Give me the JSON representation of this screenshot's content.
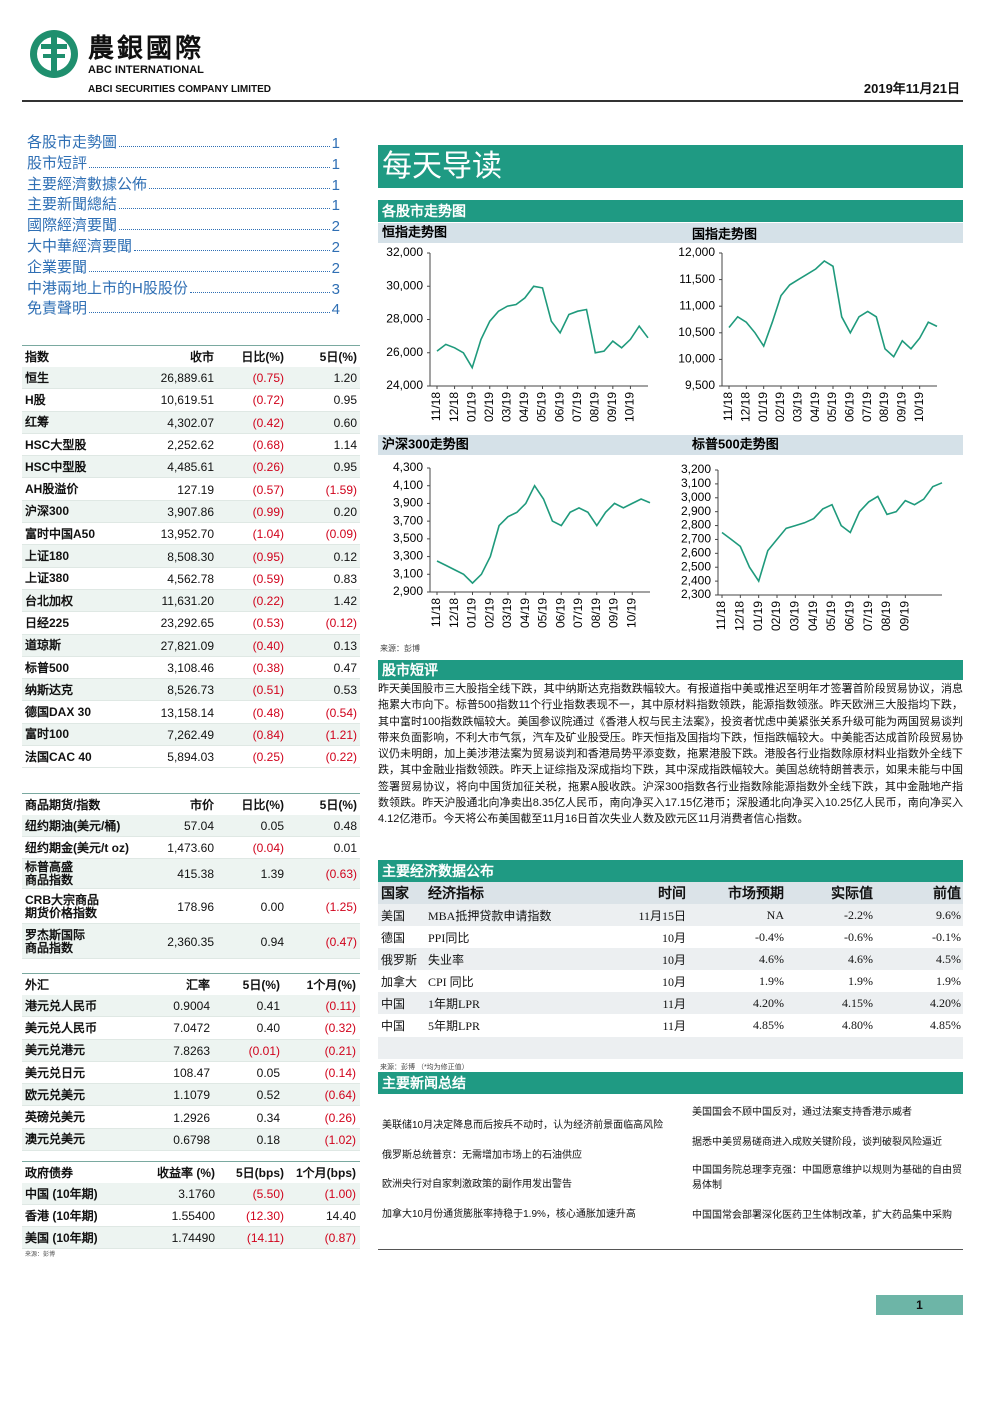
{
  "header": {
    "company_cn": "農銀國際",
    "company_en": "ABC INTERNATIONAL",
    "company_full": "ABCI SECURITIES COMPANY LIMITED",
    "date": "2019年11月21日"
  },
  "toc": [
    {
      "title": "各股市走勢圖",
      "page": 1
    },
    {
      "title": "股市短評",
      "page": 1
    },
    {
      "title": "主要經濟數據公佈",
      "page": 1
    },
    {
      "title": "主要新聞總結",
      "page": 1
    },
    {
      "title": "國際經濟要聞",
      "page": 2
    },
    {
      "title": "大中華經濟要聞",
      "page": 2
    },
    {
      "title": "企業要聞",
      "page": 2
    },
    {
      "title": "中港兩地上市的H股股份",
      "page": 3
    },
    {
      "title": "免責聲明",
      "page": 4
    }
  ],
  "indices": {
    "header": [
      "指数",
      "收市",
      "日比(%)",
      "5日(%)"
    ],
    "rows": [
      [
        "恒生",
        "26,889.61",
        "(0.75)",
        "1.20"
      ],
      [
        "H股",
        "10,619.51",
        "(0.72)",
        "0.95"
      ],
      [
        "红筹",
        "4,302.07",
        "(0.42)",
        "0.60"
      ],
      [
        "HSC大型股",
        "2,252.62",
        "(0.68)",
        "1.14"
      ],
      [
        "HSC中型股",
        "4,485.61",
        "(0.26)",
        "0.95"
      ],
      [
        "AH股溢价",
        "127.19",
        "(0.57)",
        "(1.59)"
      ],
      [
        "沪深300",
        "3,907.86",
        "(0.99)",
        "0.20"
      ],
      [
        "富时中国A50",
        "13,952.70",
        "(1.04)",
        "(0.09)"
      ],
      [
        "上证180",
        "8,508.30",
        "(0.95)",
        "0.12"
      ],
      [
        "上证380",
        "4,562.78",
        "(0.59)",
        "0.83"
      ],
      [
        "台北加权",
        "11,631.20",
        "(0.22)",
        "1.42"
      ],
      [
        "日经225",
        "23,292.65",
        "(0.53)",
        "(0.12)"
      ],
      [
        "道琼斯",
        "27,821.09",
        "(0.40)",
        "0.13"
      ],
      [
        "标普500",
        "3,108.46",
        "(0.38)",
        "0.47"
      ],
      [
        "纳斯达克",
        "8,526.73",
        "(0.51)",
        "0.53"
      ],
      [
        "德国DAX 30",
        "13,158.14",
        "(0.48)",
        "(0.54)"
      ],
      [
        "富时100",
        "7,262.49",
        "(0.84)",
        "(1.21)"
      ],
      [
        "法国CAC 40",
        "5,894.03",
        "(0.25)",
        "(0.22)"
      ]
    ]
  },
  "commodities": {
    "header": [
      "商品期货/指数",
      "市价",
      "日比(%)",
      "5日(%)"
    ],
    "rows": [
      [
        "纽约期油(美元/桶)",
        "57.04",
        "0.05",
        "0.48"
      ],
      [
        "纽约期金(美元/t oz)",
        "1,473.60",
        "(0.04)",
        "0.01"
      ],
      [
        "标普高盛\n商品指数",
        "415.38",
        "1.39",
        "(0.63)"
      ],
      [
        "CRB大宗商品\n期货价格指数",
        "178.96",
        "0.00",
        "(1.25)"
      ],
      [
        "罗杰斯国际\n商品指数",
        "2,360.35",
        "0.94",
        "(0.47)"
      ]
    ]
  },
  "fx": {
    "header": [
      "外汇",
      "汇率",
      "5日(%)",
      "1个月(%)"
    ],
    "rows": [
      [
        "港元兑人民币",
        "0.9004",
        "0.41",
        "(0.11)"
      ],
      [
        "美元兑人民币",
        "7.0472",
        "0.40",
        "(0.32)"
      ],
      [
        "美元兑港元",
        "7.8263",
        "(0.01)",
        "(0.21)"
      ],
      [
        "美元兑日元",
        "108.47",
        "0.05",
        "(0.14)"
      ],
      [
        "欧元兑美元",
        "1.1079",
        "0.52",
        "(0.64)"
      ],
      [
        "英磅兑美元",
        "1.2926",
        "0.34",
        "(0.26)"
      ],
      [
        "澳元兑美元",
        "0.6798",
        "0.18",
        "(1.02)"
      ]
    ]
  },
  "bonds": {
    "header": [
      "政府债券",
      "收益率 (%)",
      "5日(bps)",
      "1个月(bps)"
    ],
    "rows": [
      [
        "中国 (10年期)",
        "3.1760",
        "(5.50)",
        "(1.00)"
      ],
      [
        "香港 (10年期)",
        "1.55400",
        "(12.30)",
        "14.40"
      ],
      [
        "美国 (10年期)",
        "1.74490",
        "(14.11)",
        "(0.87)"
      ]
    ]
  },
  "left_source": "来源：彭博",
  "banner": "每天导读",
  "charts_section": "各股市走势图",
  "chart_data": [
    {
      "type": "line",
      "title": "恒指走势图",
      "color": "#1f9a7c",
      "x": [
        0,
        0.5,
        1,
        1.5,
        2,
        2.5,
        3,
        3.5,
        4,
        4.5,
        5,
        5.5,
        6,
        6.5,
        7,
        7.5,
        8,
        8.5,
        9,
        9.5,
        10,
        10.5,
        11,
        11.5,
        12
      ],
      "values": [
        26100,
        26500,
        26300,
        26000,
        25100,
        26800,
        27900,
        28500,
        28800,
        28900,
        29300,
        30000,
        29900,
        27900,
        27200,
        28300,
        28500,
        28600,
        26000,
        26100,
        26700,
        26300,
        26800,
        27600,
        26900
      ],
      "xlim": [
        0,
        12
      ],
      "ylim": [
        24000,
        32000
      ],
      "yticks": [
        {
          "value": 24000,
          "label": "24,000"
        },
        {
          "value": 26000,
          "label": "26,000"
        },
        {
          "value": 28000,
          "label": "28,000"
        },
        {
          "value": 30000,
          "label": "30,000"
        },
        {
          "value": 32000,
          "label": "32,000"
        }
      ],
      "xticks": [
        {
          "value": 0,
          "label": "11/18"
        },
        {
          "value": 1,
          "label": "12/18"
        },
        {
          "value": 2,
          "label": "01/19"
        },
        {
          "value": 3,
          "label": "02/19"
        },
        {
          "value": 4,
          "label": "03/19"
        },
        {
          "value": 5,
          "label": "04/19"
        },
        {
          "value": 6,
          "label": "05/19"
        },
        {
          "value": 7,
          "label": "06/19"
        },
        {
          "value": 8,
          "label": "07/19"
        },
        {
          "value": 9,
          "label": "08/19"
        },
        {
          "value": 10,
          "label": "09/19"
        },
        {
          "value": 11,
          "label": "10/19"
        }
      ]
    },
    {
      "type": "line",
      "title": "国指走势图",
      "color": "#1f9a7c",
      "x": [
        0,
        0.5,
        1,
        1.5,
        2,
        2.5,
        3,
        3.5,
        4,
        4.5,
        5,
        5.5,
        6,
        6.5,
        7,
        7.5,
        8,
        8.5,
        9,
        9.5,
        10,
        10.5,
        11,
        11.5,
        12
      ],
      "values": [
        10600,
        10800,
        10700,
        10500,
        10250,
        10700,
        11200,
        11400,
        11500,
        11600,
        11700,
        11850,
        11750,
        10800,
        10500,
        10800,
        10900,
        10800,
        10200,
        10050,
        10350,
        10200,
        10400,
        10700,
        10620
      ],
      "xlim": [
        0,
        12
      ],
      "ylim": [
        9500,
        12000
      ],
      "yticks": [
        {
          "value": 9500,
          "label": "9,500"
        },
        {
          "value": 10000,
          "label": "10,000"
        },
        {
          "value": 10500,
          "label": "10,500"
        },
        {
          "value": 11000,
          "label": "11,000"
        },
        {
          "value": 11500,
          "label": "11,500"
        },
        {
          "value": 12000,
          "label": "12,000"
        }
      ],
      "xticks": [
        {
          "value": 0,
          "label": "11/18"
        },
        {
          "value": 1,
          "label": "12/18"
        },
        {
          "value": 2,
          "label": "01/19"
        },
        {
          "value": 3,
          "label": "02/19"
        },
        {
          "value": 4,
          "label": "03/19"
        },
        {
          "value": 5,
          "label": "04/19"
        },
        {
          "value": 6,
          "label": "05/19"
        },
        {
          "value": 7,
          "label": "06/19"
        },
        {
          "value": 8,
          "label": "07/19"
        },
        {
          "value": 9,
          "label": "08/19"
        },
        {
          "value": 10,
          "label": "09/19"
        },
        {
          "value": 11,
          "label": "10/19"
        }
      ]
    },
    {
      "type": "line",
      "title": "沪深300走势图",
      "color": "#1f9a7c",
      "x": [
        0,
        0.5,
        1,
        1.5,
        2,
        2.5,
        3,
        3.5,
        4,
        4.5,
        5,
        5.5,
        6,
        6.5,
        7,
        7.5,
        8,
        8.5,
        9,
        9.5,
        10,
        10.5,
        11,
        11.5,
        12
      ],
      "values": [
        3250,
        3200,
        3150,
        3100,
        3000,
        3100,
        3300,
        3650,
        3750,
        3800,
        3900,
        4100,
        3950,
        3700,
        3650,
        3800,
        3850,
        3800,
        3650,
        3800,
        3900,
        3850,
        3900,
        3950,
        3908
      ],
      "xlim": [
        0,
        12
      ],
      "ylim": [
        2900,
        4300
      ],
      "yticks": [
        {
          "value": 2900,
          "label": "2,900"
        },
        {
          "value": 3100,
          "label": "3,100"
        },
        {
          "value": 3300,
          "label": "3,300"
        },
        {
          "value": 3500,
          "label": "3,500"
        },
        {
          "value": 3700,
          "label": "3,700"
        },
        {
          "value": 3900,
          "label": "3,900"
        },
        {
          "value": 4100,
          "label": "4,100"
        },
        {
          "value": 4300,
          "label": "4,300"
        }
      ],
      "xticks": [
        {
          "value": 0,
          "label": "11/18"
        },
        {
          "value": 1,
          "label": "12/18"
        },
        {
          "value": 2,
          "label": "01/19"
        },
        {
          "value": 3,
          "label": "02/19"
        },
        {
          "value": 4,
          "label": "03/19"
        },
        {
          "value": 5,
          "label": "04/19"
        },
        {
          "value": 6,
          "label": "05/19"
        },
        {
          "value": 7,
          "label": "06/19"
        },
        {
          "value": 8,
          "label": "07/19"
        },
        {
          "value": 9,
          "label": "08/19"
        },
        {
          "value": 10,
          "label": "09/19"
        },
        {
          "value": 11,
          "label": "10/19"
        }
      ]
    },
    {
      "type": "line",
      "title": "标普500走势图",
      "color": "#1f9a7c",
      "x": [
        0,
        0.5,
        1,
        1.5,
        2,
        2.5,
        3,
        3.5,
        4,
        4.5,
        5,
        5.5,
        6,
        6.5,
        7,
        7.5,
        8,
        8.5,
        9,
        9.5,
        10,
        10.5,
        11,
        11.5,
        12
      ],
      "values": [
        2750,
        2700,
        2650,
        2500,
        2400,
        2620,
        2700,
        2780,
        2800,
        2820,
        2850,
        2920,
        2950,
        2800,
        2750,
        2900,
        2970,
        3010,
        2880,
        2900,
        2980,
        2950,
        2990,
        3080,
        3108
      ],
      "xlim": [
        0,
        12
      ],
      "ylim": [
        2300,
        3200
      ],
      "yticks": [
        {
          "value": 2300,
          "label": "2,300"
        },
        {
          "value": 2400,
          "label": "2,400"
        },
        {
          "value": 2500,
          "label": "2,500"
        },
        {
          "value": 2600,
          "label": "2,600"
        },
        {
          "value": 2700,
          "label": "2,700"
        },
        {
          "value": 2800,
          "label": "2,800"
        },
        {
          "value": 2900,
          "label": "2,900"
        },
        {
          "value": 3000,
          "label": "3,000"
        },
        {
          "value": 3100,
          "label": "3,100"
        },
        {
          "value": 3200,
          "label": "3,200"
        }
      ],
      "xticks": [
        {
          "value": 0,
          "label": "11/18"
        },
        {
          "value": 1,
          "label": "12/18"
        },
        {
          "value": 2,
          "label": "01/19"
        },
        {
          "value": 3,
          "label": "02/19"
        },
        {
          "value": 4,
          "label": "03/19"
        },
        {
          "value": 5,
          "label": "04/19"
        },
        {
          "value": 6,
          "label": "05/19"
        },
        {
          "value": 7,
          "label": "06/19"
        },
        {
          "value": 8,
          "label": "07/19"
        },
        {
          "value": 9,
          "label": "08/19"
        },
        {
          "value": 10,
          "label": "09/19"
        }
      ]
    }
  ],
  "chart_source": "来源：彭博",
  "commentary": {
    "title": "股市短评",
    "text": "昨天美国股市三大股指全线下跌，其中纳斯达克指数跌幅较大。有报道指中美或推迟至明年才签署首阶段贸易协议，消息拖累大市向下。标普500指数11个行业指数表现不一，其中原材料指数领跌，能源指数领涨。昨天欧洲三大股指均下跌，其中富时100指数跌幅较大。美国参议院通过《香港人权与民主法案》，投资者忧虑中美紧张关系升级可能为两国贸易谈判带来负面影响，不利大市气氛，汽车及矿业股受压。昨天恒指及国指均下跌，恒指跌幅较大。中美能否达成首阶段贸易协议仍未明朗，加上美涉港法案为贸易谈判和香港局势平添变数，拖累港股下跌。港股各行业指数除原材料业指数外全线下跌，其中金融业指数领跌。昨天上证综指及深成指均下跌，其中深成指跌幅较大。美国总统特朗普表示，如果未能与中国签署贸易协议，将向中国货加征关税，拖累A股收跌。沪深300指数各行业指数除能源指数外全线下跌，其中金融地产指数领跌。昨天沪股通北向净卖出8.35亿人民币，南向净买入17.15亿港币；深股通北向净买入10.25亿人民币，南向净买入4.12亿港币。今天将公布美国截至11月16日首次失业人数及欧元区11月消费者信心指数。"
  },
  "econ": {
    "title": "主要经济数据公布",
    "header": [
      "国家",
      "经济指标",
      "时间",
      "市场预期",
      "实际值",
      "前值"
    ],
    "rows": [
      [
        "美国",
        "MBA抵押贷款申请指数",
        "11月15日",
        "NA",
        "-2.2%",
        "9.6%"
      ],
      [
        "德国",
        "PPI同比",
        "10月",
        "-0.4%",
        "-0.6%",
        "-0.1%"
      ],
      [
        "俄罗斯",
        "失业率",
        "10月",
        "4.6%",
        "4.6%",
        "4.5%"
      ],
      [
        "加拿大",
        "CPI 同比",
        "10月",
        "1.9%",
        "1.9%",
        "1.9%"
      ],
      [
        "中国",
        "1年期LPR",
        "11月",
        "4.20%",
        "4.15%",
        "4.20%"
      ],
      [
        "中国",
        "5年期LPR",
        "11月",
        "4.85%",
        "4.80%",
        "4.85%"
      ]
    ],
    "source": "来源：彭博 （*均为修正值）"
  },
  "news": {
    "title": "主要新闻总结",
    "left": [
      "美联储10月决定降息而后按兵不动时，认为经济前景面临高风险",
      "俄罗斯总统普京：无需增加市场上的石油供应",
      "欧洲央行对自家刺激政策的副作用发出警告",
      "加拿大10月份通货膨胀率持稳于1.9%，核心通胀加速升高"
    ],
    "right": [
      "美国国会不顾中国反对，通过法案支持香港示威者",
      "据悉中美贸易磋商进入成败关键阶段，谈判破裂风险逼近",
      "中国国务院总理李克强：中国愿意维护以规则为基础的自由贸易体制",
      "中国国常会部署深化医药卫生体制改革，扩大药品集中采购"
    ]
  },
  "page_number": "1"
}
